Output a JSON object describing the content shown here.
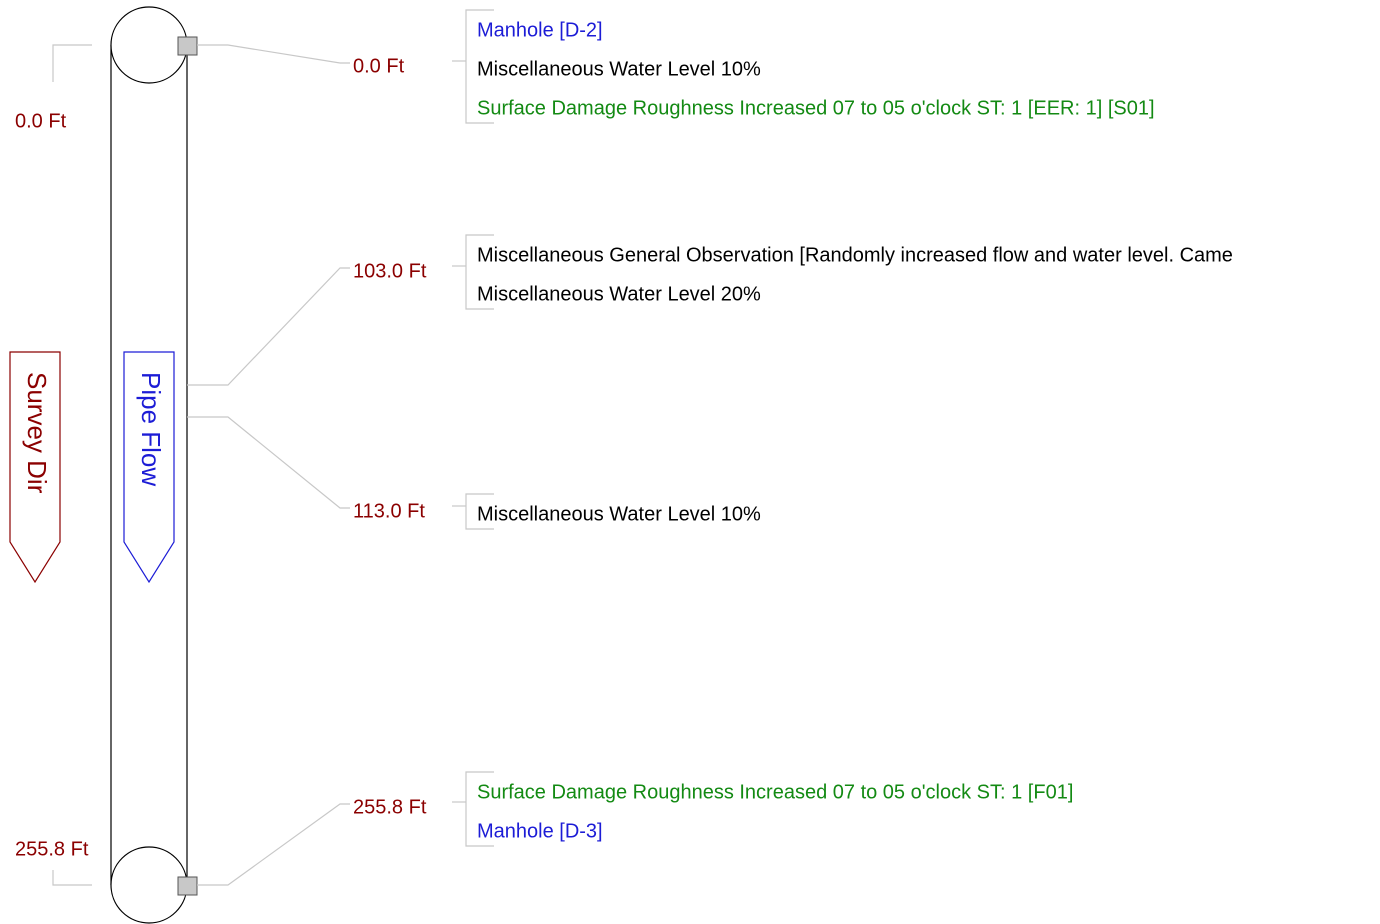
{
  "left_distances": {
    "start": "0.0 Ft",
    "end": "255.8 Ft"
  },
  "survey_dir": "Survey Dir",
  "pipe_flow": "Pipe Flow",
  "observations": [
    {
      "distance": "0.0 Ft",
      "entries": [
        {
          "text": "Manhole [D-2]",
          "color": "#1c1cd6"
        },
        {
          "text": "Miscellaneous Water Level 10%",
          "color": "#000000"
        },
        {
          "text": "Surface Damage Roughness Increased 07 to  05 o'clock ST: 1 [EER: 1] [S01]",
          "color": "#138a13"
        }
      ]
    },
    {
      "distance": "103.0 Ft",
      "entries": [
        {
          "text": "Miscellaneous General Observation [Randomly increased flow and water level. Came",
          "color": "#000000"
        },
        {
          "text": "Miscellaneous Water Level 20%",
          "color": "#000000"
        }
      ]
    },
    {
      "distance": "113.0 Ft",
      "entries": [
        {
          "text": "Miscellaneous Water Level 10%",
          "color": "#000000"
        }
      ]
    },
    {
      "distance": "255.8 Ft",
      "entries": [
        {
          "text": "Surface Damage Roughness Increased 07 to  05 o'clock ST: 1 [F01]",
          "color": "#138a13"
        },
        {
          "text": "Manhole [D-3]",
          "color": "#1c1cd6"
        }
      ]
    }
  ]
}
